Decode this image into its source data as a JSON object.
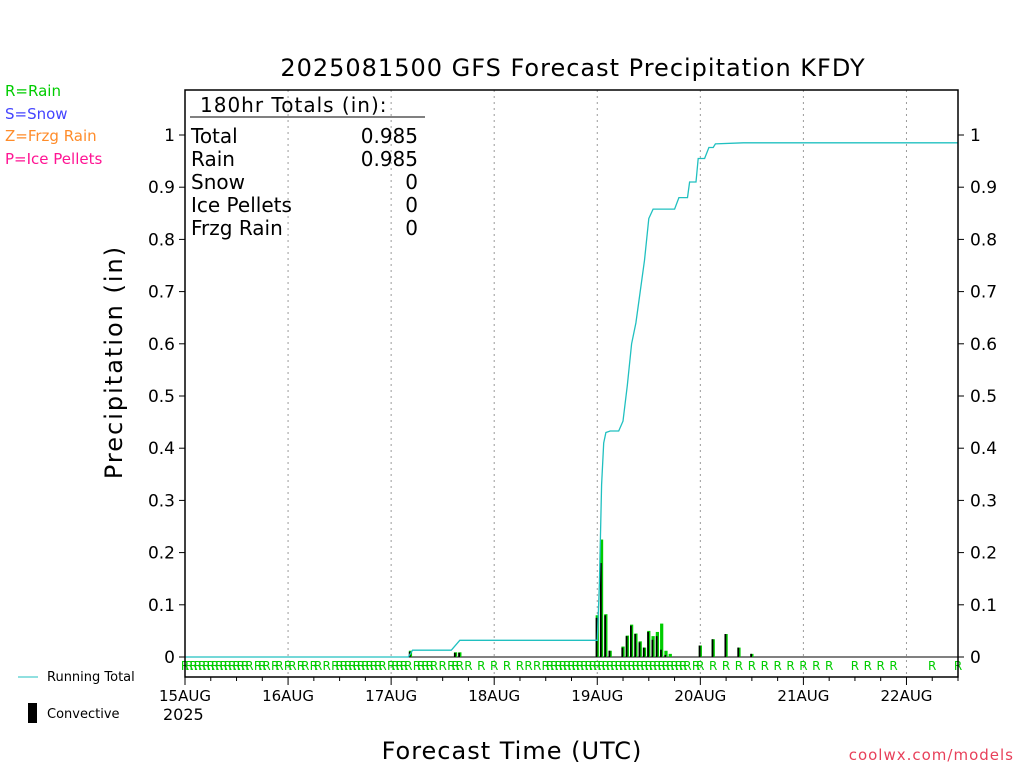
{
  "chart_data": {
    "type": "bar",
    "title": "2025081500 GFS Forecast Precipitation KFDY",
    "xlabel": "Forecast Time (UTC)",
    "ylabel": "Precipitation (in)",
    "ylim": [
      0,
      1.0
    ],
    "yticks": [
      "0",
      "0.1",
      "0.2",
      "0.3",
      "0.4",
      "0.5",
      "0.6",
      "0.7",
      "0.8",
      "0.9",
      "1"
    ],
    "xlim_hours": [
      0,
      180
    ],
    "x_ticks": [
      {
        "label": "15AUG",
        "hour": 0
      },
      {
        "label": "16AUG",
        "hour": 24
      },
      {
        "label": "17AUG",
        "hour": 48
      },
      {
        "label": "18AUG",
        "hour": 72
      },
      {
        "label": "19AUG",
        "hour": 96
      },
      {
        "label": "20AUG",
        "hour": 120
      },
      {
        "label": "21AUG",
        "hour": 144
      },
      {
        "label": "22AUG",
        "hour": 168
      }
    ],
    "year_label": "2025",
    "grid": "vertical dotted at day boundaries",
    "totals": {
      "heading": "180hr Totals (in):",
      "rows": [
        {
          "label": "Total",
          "value": "0.985"
        },
        {
          "label": "Rain",
          "value": "0.985"
        },
        {
          "label": "Snow",
          "value": "0"
        },
        {
          "label": "Ice Pellets",
          "value": "0"
        },
        {
          "label": "Frzg Rain",
          "value": "0"
        }
      ]
    },
    "precip_type_legend": [
      {
        "label": "R=Rain",
        "color": "#00cc00"
      },
      {
        "label": "S=Snow",
        "color": "#4444ff"
      },
      {
        "label": "Z=Frzg Rain",
        "color": "#ff8c2a"
      },
      {
        "label": "P=Ice Pellets",
        "color": "#ff1493"
      }
    ],
    "series": [
      {
        "name": "Running Total",
        "color": "#20c0c0",
        "points": [
          [
            0,
            0
          ],
          [
            52,
            0
          ],
          [
            53,
            0.013
          ],
          [
            62,
            0.013
          ],
          [
            64,
            0.032
          ],
          [
            96,
            0.032
          ],
          [
            96.5,
            0.14
          ],
          [
            97,
            0.33
          ],
          [
            97.5,
            0.41
          ],
          [
            98,
            0.43
          ],
          [
            99,
            0.433
          ],
          [
            101,
            0.433
          ],
          [
            102,
            0.452
          ],
          [
            103,
            0.52
          ],
          [
            104,
            0.6
          ],
          [
            105,
            0.64
          ],
          [
            106,
            0.7
          ],
          [
            107,
            0.76
          ],
          [
            108,
            0.84
          ],
          [
            109,
            0.858
          ],
          [
            114,
            0.858
          ],
          [
            115,
            0.88
          ],
          [
            117,
            0.88
          ],
          [
            117.5,
            0.91
          ],
          [
            119,
            0.91
          ],
          [
            119.5,
            0.955
          ],
          [
            121,
            0.955
          ],
          [
            122,
            0.976
          ],
          [
            123,
            0.976
          ],
          [
            123.5,
            0.983
          ],
          [
            130,
            0.985
          ],
          [
            180,
            0.985
          ]
        ]
      },
      {
        "name": "Convective",
        "color": "#000000",
        "bars": [
          [
            52.5,
            0.01
          ],
          [
            63,
            0.008
          ],
          [
            64,
            0.008
          ],
          [
            96,
            0.075
          ],
          [
            97,
            0.18
          ],
          [
            98,
            0.08
          ],
          [
            99,
            0.012
          ],
          [
            102,
            0.018
          ],
          [
            103,
            0.04
          ],
          [
            104,
            0.06
          ],
          [
            105,
            0.044
          ],
          [
            106,
            0.028
          ],
          [
            107,
            0.018
          ],
          [
            108,
            0.048
          ],
          [
            109,
            0.033
          ],
          [
            110,
            0.04
          ],
          [
            111,
            0.014
          ],
          [
            112,
            0.004
          ],
          [
            120,
            0.022
          ],
          [
            123,
            0.034
          ],
          [
            126,
            0.044
          ],
          [
            129,
            0.018
          ],
          [
            132,
            0.006
          ]
        ]
      },
      {
        "name": "Rain",
        "color": "#00cc00",
        "bars": [
          [
            52.5,
            0.012
          ],
          [
            63,
            0.009
          ],
          [
            64,
            0.009
          ],
          [
            96,
            0.08
          ],
          [
            97,
            0.225
          ],
          [
            98,
            0.082
          ],
          [
            99,
            0.012
          ],
          [
            102,
            0.02
          ],
          [
            103,
            0.041
          ],
          [
            104,
            0.062
          ],
          [
            105,
            0.045
          ],
          [
            106,
            0.03
          ],
          [
            107,
            0.018
          ],
          [
            108,
            0.05
          ],
          [
            109,
            0.04
          ],
          [
            110,
            0.048
          ],
          [
            111,
            0.064
          ],
          [
            112,
            0.012
          ],
          [
            113,
            0.006
          ],
          [
            120,
            0.022
          ],
          [
            123,
            0.034
          ],
          [
            126,
            0.044
          ],
          [
            129,
            0.018
          ],
          [
            132,
            0.006
          ]
        ]
      }
    ],
    "ptype_marker": "R",
    "ptype_hours": [
      0,
      1,
      2,
      3,
      4,
      5,
      6,
      7,
      8,
      9,
      10,
      11,
      12,
      13,
      14,
      15,
      17,
      18,
      19,
      21,
      22,
      24,
      25,
      27,
      28,
      30,
      31,
      33,
      35,
      36,
      37,
      38,
      39,
      40,
      41,
      42,
      43,
      44,
      45,
      46,
      48,
      49,
      50,
      51,
      52,
      54,
      55,
      56,
      57,
      58,
      60,
      62,
      63,
      64,
      66,
      69,
      72,
      75,
      78,
      80,
      82,
      84,
      85,
      86,
      87,
      88,
      89,
      90,
      91,
      92,
      93,
      94,
      95,
      96,
      97,
      98,
      99,
      100,
      101,
      102,
      103,
      104,
      105,
      106,
      107,
      108,
      109,
      110,
      111,
      112,
      113,
      114,
      115,
      116,
      117,
      119,
      120,
      123,
      126,
      129,
      132,
      135,
      138,
      141,
      144,
      147,
      150,
      156,
      159,
      162,
      165,
      174,
      180
    ],
    "key": {
      "running_total_label": "Running Total",
      "convective_label": "Convective"
    }
  },
  "credit": "coolwx.com/models"
}
